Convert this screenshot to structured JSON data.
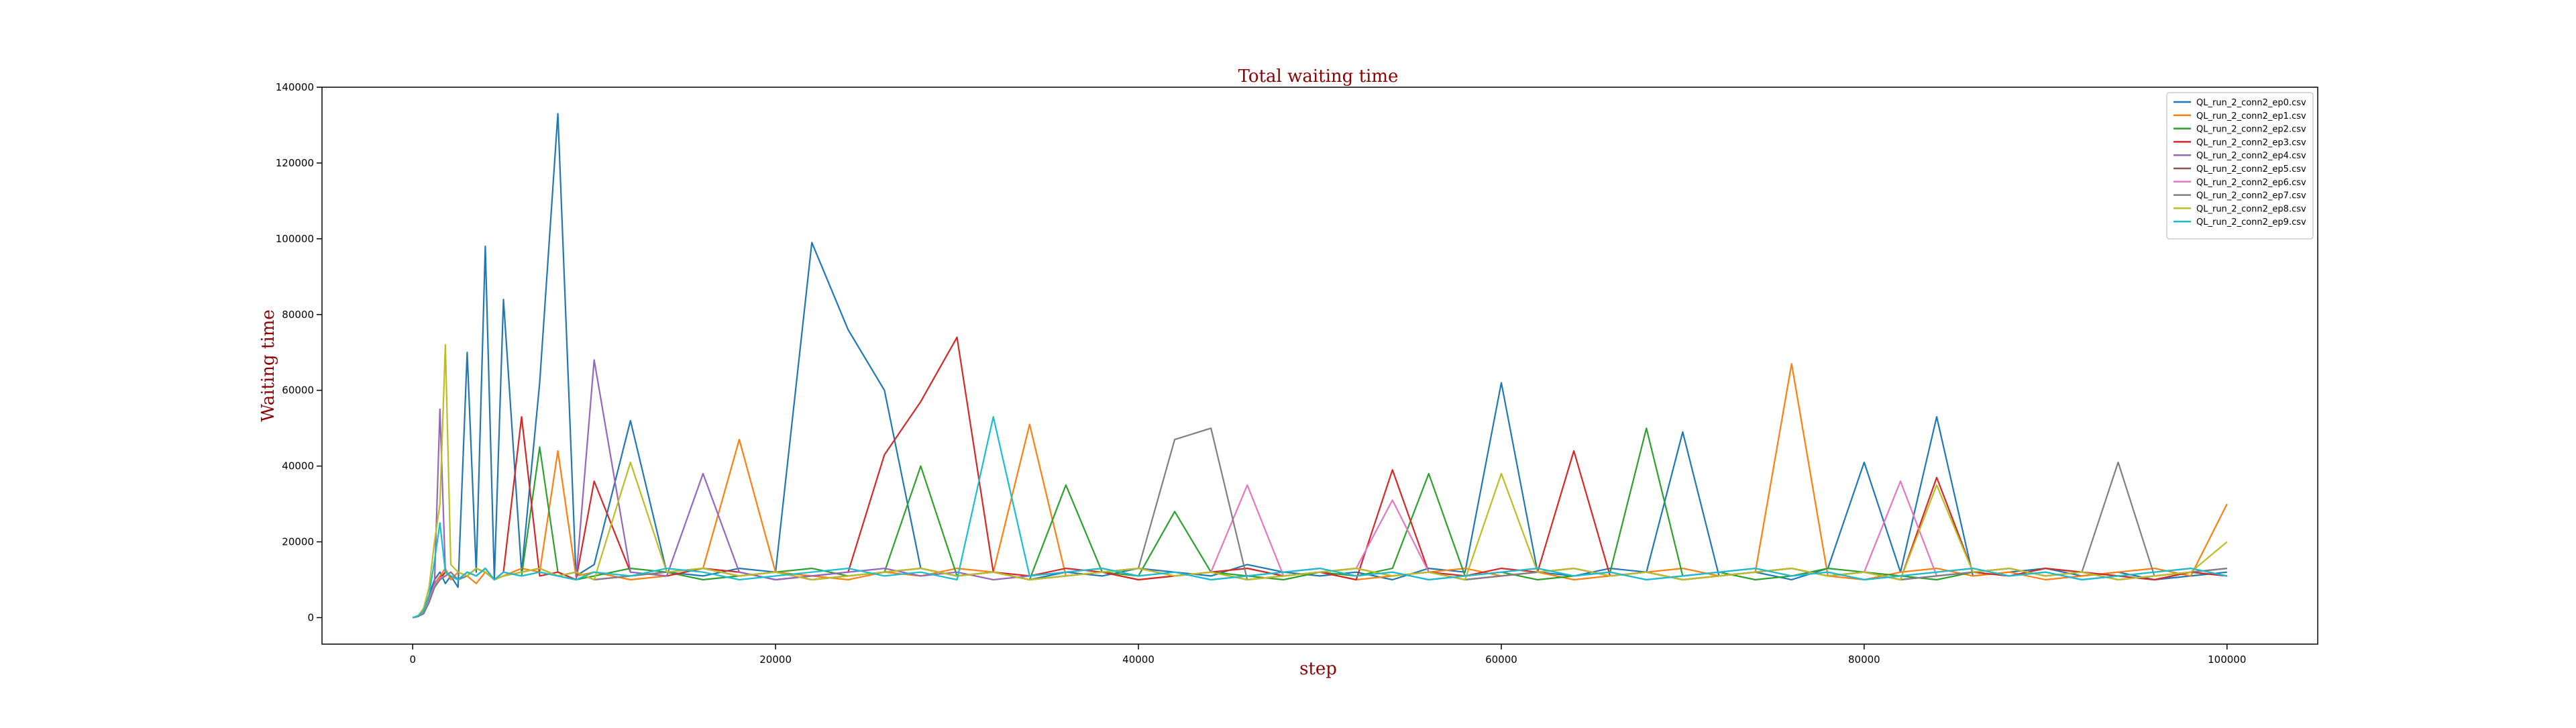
{
  "chart_data": {
    "type": "line",
    "title": "Total waiting time",
    "xlabel": "step",
    "ylabel": "Waiting time",
    "xlim": [
      -5000,
      105000
    ],
    "ylim": [
      -7000,
      140000
    ],
    "xticks": [
      0,
      20000,
      40000,
      60000,
      80000,
      100000
    ],
    "xtick_labels": [
      "0",
      "20000",
      "40000",
      "60000",
      "80000",
      "100000"
    ],
    "yticks": [
      0,
      20000,
      40000,
      60000,
      80000,
      100000,
      120000,
      140000
    ],
    "ytick_labels": [
      "0",
      "20000",
      "40000",
      "60000",
      "80000",
      "100000",
      "120000",
      "140000"
    ],
    "grid": false,
    "legend_position": "upper-right",
    "title_color": "#8b0000",
    "label_color": "#8b0000",
    "x": [
      0,
      300,
      600,
      900,
      1200,
      1500,
      1800,
      2100,
      2500,
      3000,
      3500,
      4000,
      4500,
      5000,
      6000,
      7000,
      8000,
      9000,
      10000,
      12000,
      14000,
      16000,
      18000,
      20000,
      22000,
      24000,
      26000,
      28000,
      30000,
      32000,
      34000,
      36000,
      38000,
      40000,
      42000,
      44000,
      46000,
      48000,
      50000,
      52000,
      54000,
      56000,
      58000,
      60000,
      62000,
      64000,
      66000,
      68000,
      70000,
      72000,
      74000,
      76000,
      78000,
      80000,
      82000,
      84000,
      86000,
      88000,
      90000,
      92000,
      94000,
      96000,
      98000,
      100000
    ],
    "series": [
      {
        "name": "QL_run_2_conn2_ep0.csv",
        "color": "#1f77b4",
        "values": [
          0,
          500,
          2000,
          6000,
          10000,
          12000,
          9000,
          11000,
          8000,
          70000,
          12000,
          98000,
          10000,
          84000,
          12000,
          62000,
          133000,
          11000,
          14000,
          52000,
          12000,
          11000,
          13000,
          12000,
          99000,
          76000,
          60000,
          13000,
          11000,
          12000,
          10000,
          12000,
          11000,
          13000,
          12000,
          11000,
          14000,
          12000,
          11000,
          12000,
          10000,
          13000,
          12000,
          62000,
          12000,
          11000,
          13000,
          12000,
          49000,
          11000,
          12000,
          10000,
          13000,
          41000,
          12000,
          53000,
          11000,
          12000,
          13000,
          11000,
          12000,
          10000,
          11000,
          12000
        ]
      },
      {
        "name": "QL_run_2_conn2_ep1.csv",
        "color": "#ff7f0e",
        "values": [
          0,
          400,
          1500,
          5000,
          9000,
          11000,
          13000,
          10000,
          12000,
          11000,
          9000,
          12000,
          10000,
          11000,
          13000,
          12000,
          44000,
          11000,
          12000,
          10000,
          11000,
          13000,
          47000,
          12000,
          11000,
          10000,
          12000,
          11000,
          13000,
          12000,
          51000,
          11000,
          12000,
          10000,
          11000,
          12000,
          13000,
          11000,
          12000,
          10000,
          11000,
          12000,
          13000,
          11000,
          12000,
          10000,
          11000,
          12000,
          13000,
          11000,
          12000,
          67000,
          11000,
          10000,
          12000,
          13000,
          11000,
          12000,
          10000,
          11000,
          12000,
          13000,
          11000,
          30000
        ]
      },
      {
        "name": "QL_run_2_conn2_ep2.csv",
        "color": "#2ca02c",
        "values": [
          0,
          300,
          1200,
          4000,
          8000,
          10000,
          12000,
          11000,
          10000,
          12000,
          11000,
          13000,
          10000,
          12000,
          11000,
          45000,
          12000,
          10000,
          11000,
          13000,
          12000,
          10000,
          11000,
          12000,
          13000,
          11000,
          12000,
          40000,
          11000,
          12000,
          10000,
          35000,
          12000,
          11000,
          28000,
          12000,
          11000,
          10000,
          12000,
          11000,
          13000,
          38000,
          11000,
          12000,
          10000,
          11000,
          12000,
          50000,
          11000,
          12000,
          10000,
          11000,
          13000,
          12000,
          11000,
          10000,
          12000,
          11000,
          13000,
          12000,
          11000,
          10000,
          12000,
          11000
        ]
      },
      {
        "name": "QL_run_2_conn2_ep3.csv",
        "color": "#d62728",
        "values": [
          0,
          350,
          1300,
          4500,
          8500,
          10500,
          12000,
          11000,
          10000,
          12000,
          11000,
          13000,
          10000,
          12000,
          53000,
          11000,
          12000,
          10000,
          36000,
          12000,
          11000,
          13000,
          12000,
          10000,
          11000,
          12000,
          43000,
          57000,
          74000,
          12000,
          11000,
          13000,
          12000,
          10000,
          11000,
          12000,
          13000,
          11000,
          12000,
          10000,
          39000,
          12000,
          11000,
          13000,
          12000,
          44000,
          11000,
          12000,
          10000,
          11000,
          12000,
          13000,
          11000,
          12000,
          10000,
          37000,
          12000,
          11000,
          13000,
          12000,
          11000,
          10000,
          12000,
          11000
        ]
      },
      {
        "name": "QL_run_2_conn2_ep4.csv",
        "color": "#9467bd",
        "values": [
          0,
          400,
          1400,
          5000,
          9000,
          55000,
          12000,
          11000,
          10000,
          12000,
          11000,
          13000,
          10000,
          12000,
          11000,
          12000,
          11000,
          10000,
          68000,
          12000,
          11000,
          38000,
          12000,
          10000,
          11000,
          12000,
          13000,
          11000,
          12000,
          10000,
          11000,
          12000,
          13000,
          11000,
          12000,
          10000,
          11000,
          12000,
          13000,
          11000,
          12000,
          10000,
          11000,
          12000,
          13000,
          11000,
          12000,
          10000,
          11000,
          12000,
          13000,
          11000,
          12000,
          10000,
          11000,
          12000,
          13000,
          11000,
          12000,
          10000,
          11000,
          12000,
          13000,
          11000
        ]
      },
      {
        "name": "QL_run_2_conn2_ep5.csv",
        "color": "#8c564b",
        "values": [
          0,
          300,
          1100,
          4000,
          8000,
          10000,
          11000,
          12000,
          10000,
          11000,
          13000,
          12000,
          10000,
          11000,
          12000,
          13000,
          11000,
          12000,
          10000,
          11000,
          12000,
          13000,
          11000,
          12000,
          10000,
          11000,
          12000,
          13000,
          11000,
          12000,
          10000,
          11000,
          12000,
          13000,
          11000,
          12000,
          10000,
          11000,
          12000,
          13000,
          11000,
          12000,
          10000,
          11000,
          12000,
          13000,
          11000,
          12000,
          10000,
          11000,
          12000,
          13000,
          11000,
          12000,
          10000,
          11000,
          12000,
          13000,
          11000,
          12000,
          10000,
          11000,
          12000,
          13000
        ]
      },
      {
        "name": "QL_run_2_conn2_ep6.csv",
        "color": "#e377c2",
        "values": [
          0,
          350,
          1200,
          4500,
          8500,
          10500,
          11000,
          12000,
          10000,
          11000,
          13000,
          12000,
          10000,
          11000,
          12000,
          13000,
          11000,
          12000,
          10000,
          11000,
          12000,
          13000,
          11000,
          12000,
          10000,
          11000,
          12000,
          13000,
          11000,
          12000,
          10000,
          11000,
          12000,
          13000,
          11000,
          12000,
          35000,
          11000,
          12000,
          13000,
          31000,
          12000,
          10000,
          11000,
          12000,
          13000,
          11000,
          12000,
          10000,
          11000,
          12000,
          13000,
          11000,
          12000,
          36000,
          11000,
          12000,
          13000,
          11000,
          12000,
          10000,
          11000,
          12000,
          13000
        ]
      },
      {
        "name": "QL_run_2_conn2_ep7.csv",
        "color": "#7f7f7f",
        "values": [
          0,
          300,
          1000,
          4000,
          8000,
          10000,
          11000,
          12000,
          10000,
          11000,
          13000,
          12000,
          10000,
          11000,
          12000,
          13000,
          11000,
          12000,
          10000,
          11000,
          12000,
          13000,
          11000,
          12000,
          10000,
          11000,
          12000,
          13000,
          11000,
          12000,
          10000,
          11000,
          12000,
          13000,
          47000,
          50000,
          10000,
          11000,
          12000,
          13000,
          11000,
          12000,
          10000,
          11000,
          12000,
          13000,
          11000,
          12000,
          10000,
          11000,
          12000,
          13000,
          11000,
          12000,
          10000,
          11000,
          12000,
          13000,
          11000,
          12000,
          41000,
          11000,
          12000,
          13000
        ]
      },
      {
        "name": "QL_run_2_conn2_ep8.csv",
        "color": "#bcbd22",
        "values": [
          0,
          500,
          2500,
          8000,
          20000,
          30000,
          72000,
          14000,
          12000,
          11000,
          13000,
          12000,
          10000,
          11000,
          12000,
          13000,
          11000,
          12000,
          10000,
          41000,
          12000,
          13000,
          11000,
          12000,
          10000,
          11000,
          12000,
          13000,
          11000,
          12000,
          10000,
          11000,
          12000,
          13000,
          11000,
          12000,
          10000,
          11000,
          12000,
          13000,
          11000,
          12000,
          10000,
          38000,
          12000,
          13000,
          11000,
          12000,
          10000,
          11000,
          12000,
          13000,
          11000,
          12000,
          10000,
          35000,
          12000,
          13000,
          11000,
          12000,
          10000,
          11000,
          12000,
          20000
        ]
      },
      {
        "name": "QL_run_2_conn2_ep9.csv",
        "color": "#17becf",
        "values": [
          0,
          450,
          1800,
          6000,
          15000,
          25000,
          12000,
          11000,
          10000,
          12000,
          11000,
          13000,
          10000,
          12000,
          11000,
          12000,
          11000,
          10000,
          12000,
          11000,
          13000,
          12000,
          10000,
          11000,
          12000,
          13000,
          11000,
          12000,
          10000,
          53000,
          11000,
          12000,
          13000,
          11000,
          12000,
          10000,
          11000,
          12000,
          13000,
          11000,
          12000,
          10000,
          11000,
          12000,
          13000,
          11000,
          12000,
          10000,
          11000,
          12000,
          13000,
          11000,
          12000,
          10000,
          11000,
          12000,
          13000,
          11000,
          12000,
          10000,
          11000,
          12000,
          13000,
          11000
        ]
      }
    ]
  }
}
